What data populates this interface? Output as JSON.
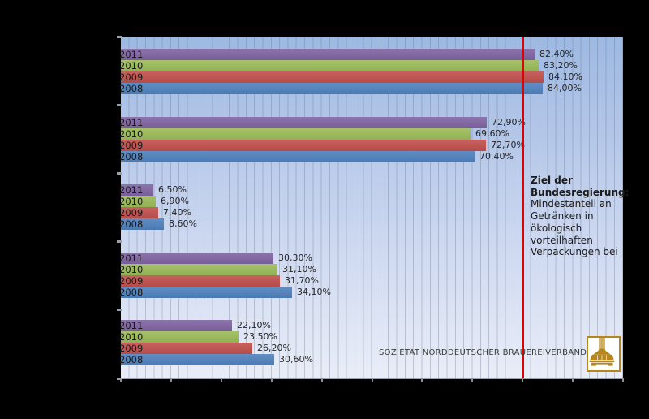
{
  "chart_data": {
    "type": "bar",
    "orientation": "horizontal",
    "unit": "%",
    "series_years": [
      "2011",
      "2010",
      "2009",
      "2008"
    ],
    "series_colors": {
      "2011": "#8064A2",
      "2010": "#9BBB59",
      "2009": "#C0504D",
      "2008": "#4F81BD"
    },
    "groups": [
      {
        "values": [
          82.4,
          83.2,
          84.1,
          84.0
        ],
        "labels": [
          "82,40%",
          "83,20%",
          "84,10%",
          "84,00%"
        ]
      },
      {
        "values": [
          72.9,
          69.6,
          72.7,
          70.4
        ],
        "labels": [
          "72,90%",
          "69,60%",
          "72,70%",
          "70,40%"
        ]
      },
      {
        "values": [
          6.5,
          6.9,
          7.4,
          8.6
        ],
        "labels": [
          "6,50%",
          "6,90%",
          "7,40%",
          "8,60%"
        ]
      },
      {
        "values": [
          30.3,
          31.1,
          31.7,
          34.1
        ],
        "labels": [
          "30,30%",
          "31,10%",
          "31,70%",
          "34,10%"
        ]
      },
      {
        "values": [
          22.1,
          23.5,
          26.2,
          30.6
        ],
        "labels": [
          "22,10%",
          "23,50%",
          "26,20%",
          "30,60%"
        ]
      }
    ],
    "x_axis": {
      "min": 0,
      "max": 100,
      "major_tick_step": 10,
      "minor_divisions": 60,
      "labels_visible": false
    },
    "target_line": {
      "value": 80,
      "color": "#E30000"
    },
    "legend_position": "none",
    "grid": "vertical-minor"
  },
  "annotation": {
    "bold_lines": [
      "Ziel der",
      "Bundesregierung:"
    ],
    "lines": [
      "Mindestanteil an",
      "Getränken in",
      "ökologisch",
      "vorteilhaften",
      "Verpackungen bei"
    ]
  },
  "footer": {
    "org": "SOZIETÄT NORDDEUTSCHER BRAUEREIVERBÄNDE e.V."
  },
  "logo": {
    "icon": "brew-kettle-icon",
    "color": "#B5861B"
  }
}
